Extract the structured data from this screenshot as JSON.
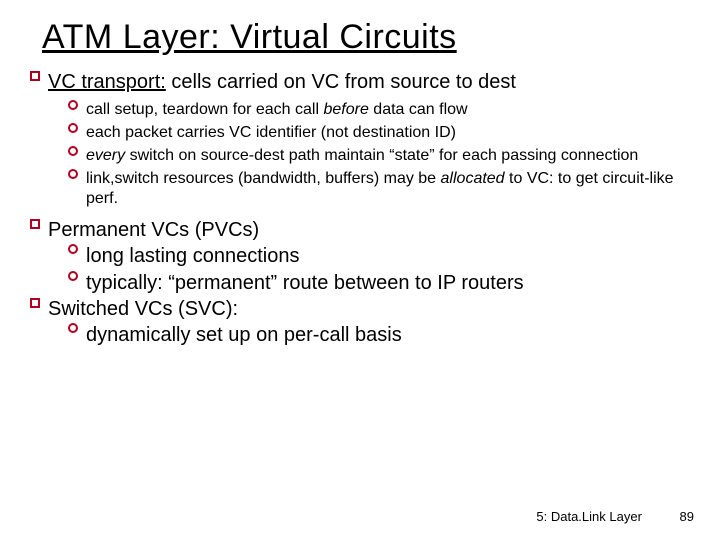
{
  "title": "ATM Layer: Virtual Circuits",
  "top": {
    "lead_u": "VC transport:",
    "lead_rest": " cells carried on VC from source to dest",
    "subs": {
      "s1a": "call setup, teardown for each call ",
      "s1b": "before",
      "s1c": " data can flow",
      "s2": "each packet carries VC identifier (not destination ID)",
      "s3a": "every",
      "s3b": " switch on source-dest path maintain “state” for each passing connection",
      "s4a": "link,switch resources (bandwidth, buffers) may be ",
      "s4b": "allocated",
      "s4c": " to VC: to get circuit-like perf."
    }
  },
  "perm": {
    "title": "Permanent VCs (PVCs)",
    "s1": "long lasting connections",
    "s2": "typically: “permanent” route between to IP routers"
  },
  "svc": {
    "title": "Switched VCs (SVC):",
    "s1": "dynamically set up on per-call basis"
  },
  "footer": {
    "label": "5: Data.Link Layer",
    "page": "89"
  },
  "colors": {
    "bullet_border": "#b00020",
    "bg": "#ffffff"
  }
}
